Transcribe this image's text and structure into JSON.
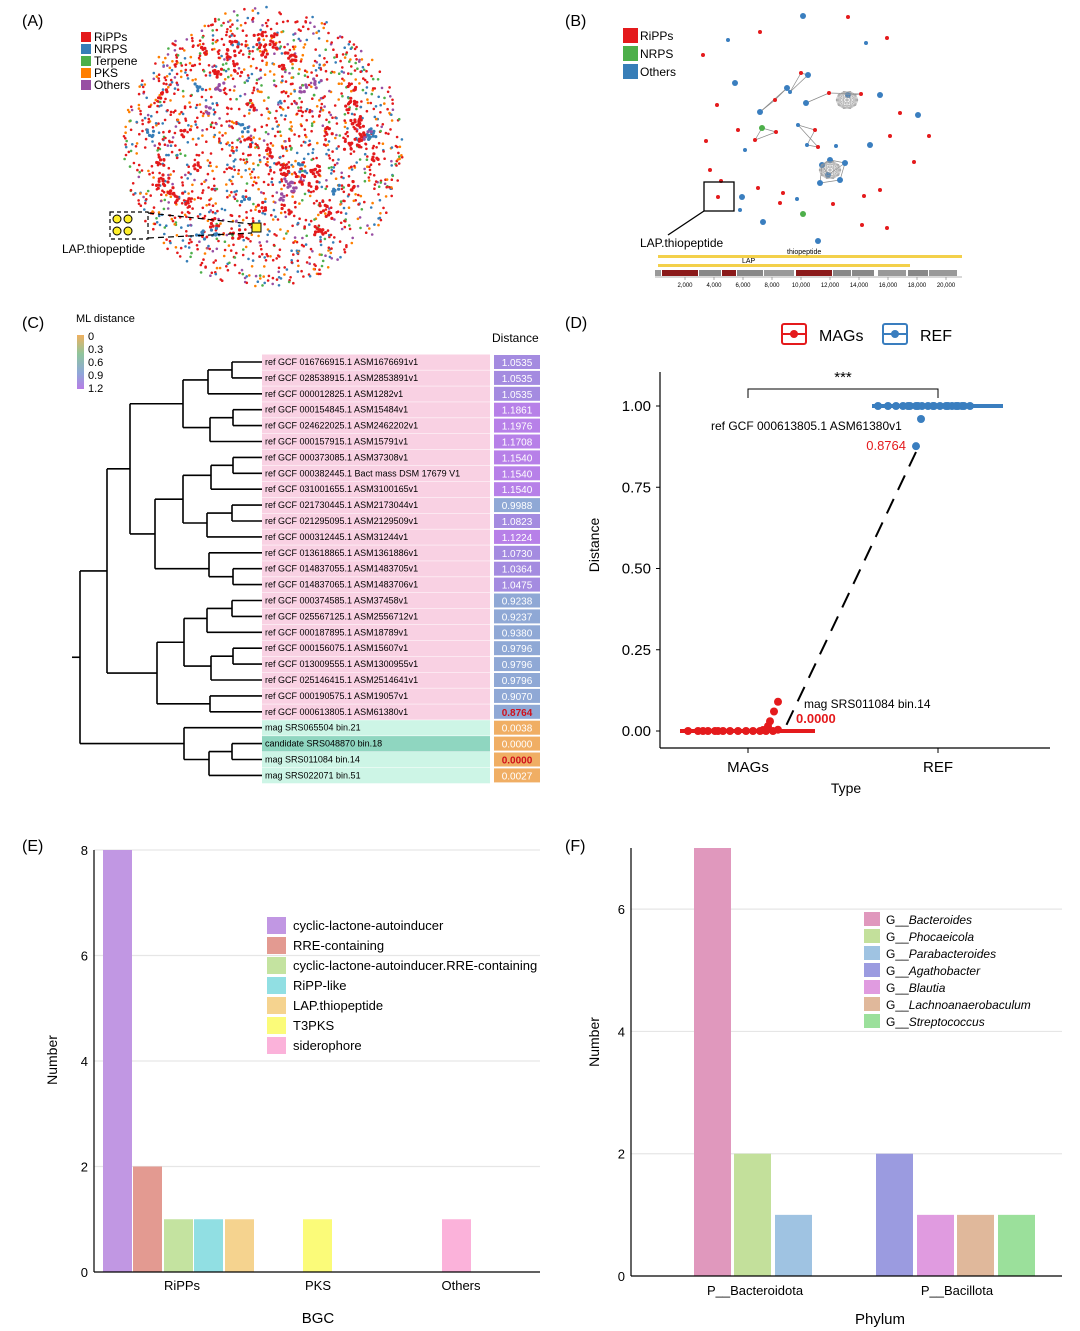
{
  "panel_letters": [
    "(A)",
    "(B)",
    "(C)",
    "(D)",
    "(E)",
    "(F)"
  ],
  "colors": {
    "ripps": "#e41a1c",
    "nrps": "#377eb8",
    "terpene": "#4daf4a",
    "pks": "#ff7f00",
    "others": "#984ea3",
    "mags": "#e41a1c",
    "ref": "#3a7ebf",
    "ref_label_bg": "#f9d1e3",
    "mag_label_bg": "#cdf5e6",
    "candidate_bg": "#8fd6c0"
  },
  "panel_a": {
    "legend": [
      {
        "label": "RiPPs",
        "color": "#e41a1c"
      },
      {
        "label": "NRPS",
        "color": "#377eb8"
      },
      {
        "label": "Terpene",
        "color": "#4daf4a"
      },
      {
        "label": "PKS",
        "color": "#ff7f00"
      },
      {
        "label": "Others",
        "color": "#984ea3"
      }
    ],
    "callout_label": "LAP.thiopeptide",
    "callout_icon": "yellow-node-cluster-icon"
  },
  "panel_b": {
    "legend": [
      {
        "label": "RiPPs",
        "color": "#e41a1c"
      },
      {
        "label": "NRPS",
        "color": "#4daf4a"
      },
      {
        "label": "Others",
        "color": "#377eb8"
      }
    ],
    "callout_label": "LAP.thiopeptide",
    "track_labels": [
      "thiopeptide",
      "LAP"
    ],
    "axis_ticks": [
      "2,000",
      "4,000",
      "6,000",
      "8,000",
      "10,000",
      "12,000",
      "14,000",
      "16,000",
      "18,000",
      "20,000"
    ]
  },
  "chart_data": [
    {
      "type": "table",
      "panel": "C",
      "legend_title": "ML distance",
      "legend_ticks": [
        "0",
        "0.3",
        "0.6",
        "0.9",
        "1.2"
      ],
      "column_header": "Distance",
      "rows": [
        {
          "label": "ref GCF 016766915.1 ASM1676691v1",
          "distance": "1.0535",
          "group": "ref"
        },
        {
          "label": "ref GCF 028538915.1 ASM2853891v1",
          "distance": "1.0535",
          "group": "ref"
        },
        {
          "label": "ref GCF 000012825.1 ASM1282v1",
          "distance": "1.0535",
          "group": "ref"
        },
        {
          "label": "ref GCF 000154845.1 ASM15484v1",
          "distance": "1.1861",
          "group": "ref"
        },
        {
          "label": "ref GCF 024622025.1 ASM2462202v1",
          "distance": "1.1976",
          "group": "ref"
        },
        {
          "label": "ref GCF 000157915.1 ASM15791v1",
          "distance": "1.1708",
          "group": "ref"
        },
        {
          "label": "ref GCF 000373085.1 ASM37308v1",
          "distance": "1.1540",
          "group": "ref"
        },
        {
          "label": "ref GCF 000382445.1 Bact mass DSM 17679 V1",
          "distance": "1.1540",
          "group": "ref"
        },
        {
          "label": "ref GCF 031001655.1 ASM3100165v1",
          "distance": "1.1540",
          "group": "ref"
        },
        {
          "label": "ref GCF 021730445.1 ASM2173044v1",
          "distance": "0.9988",
          "group": "ref"
        },
        {
          "label": "ref GCF 021295095.1 ASM2129509v1",
          "distance": "1.0823",
          "group": "ref"
        },
        {
          "label": "ref GCF 000312445.1 ASM31244v1",
          "distance": "1.1224",
          "group": "ref"
        },
        {
          "label": "ref GCF 013618865.1 ASM1361886v1",
          "distance": "1.0730",
          "group": "ref"
        },
        {
          "label": "ref GCF 014837055.1 ASM1483705v1",
          "distance": "1.0364",
          "group": "ref"
        },
        {
          "label": "ref GCF 014837065.1 ASM1483706v1",
          "distance": "1.0475",
          "group": "ref"
        },
        {
          "label": "ref GCF 000374585.1 ASM37458v1",
          "distance": "0.9238",
          "group": "ref"
        },
        {
          "label": "ref GCF 025567125.1 ASM2556712v1",
          "distance": "0.9237",
          "group": "ref"
        },
        {
          "label": "ref GCF 000187895.1 ASM18789v1",
          "distance": "0.9380",
          "group": "ref"
        },
        {
          "label": "ref GCF 000156075.1 ASM15607v1",
          "distance": "0.9796",
          "group": "ref"
        },
        {
          "label": "ref GCF 013009555.1 ASM1300955v1",
          "distance": "0.9796",
          "group": "ref"
        },
        {
          "label": "ref GCF 025146415.1 ASM2514641v1",
          "distance": "0.9796",
          "group": "ref"
        },
        {
          "label": "ref GCF 000190575.1 ASM19057v1",
          "distance": "0.9070",
          "group": "ref"
        },
        {
          "label": "ref GCF 000613805.1 ASM61380v1",
          "distance": "0.8764",
          "group": "ref",
          "highlight": true
        },
        {
          "label": "mag SRS065504 bin.21",
          "distance": "0.0038",
          "group": "mag"
        },
        {
          "label": "candidate SRS048870 bin.18",
          "distance": "0.0000",
          "group": "candidate"
        },
        {
          "label": "mag SRS011084 bin.14",
          "distance": "0.0000",
          "group": "mag",
          "highlight": true
        },
        {
          "label": "mag SRS022071 bin.51",
          "distance": "0.0027",
          "group": "mag"
        }
      ]
    },
    {
      "type": "scatter",
      "panel": "D",
      "legend": [
        "MAGs",
        "REF"
      ],
      "xlabel": "Type",
      "ylabel": "Distance",
      "categories": [
        "MAGs",
        "REF"
      ],
      "ylim": [
        0,
        1.0
      ],
      "yticks": [
        "0.00",
        "0.25",
        "0.50",
        "0.75",
        "1.00"
      ],
      "significance": "***",
      "series": [
        {
          "name": "MAGs",
          "values": [
            0.0,
            0.0,
            0.0,
            0.0,
            0.0,
            0.0,
            0.0,
            0.0,
            0.0,
            0.0,
            0.0,
            0.0,
            0.0,
            0.0,
            0.004,
            0.003,
            0.015,
            0.03,
            0.06,
            0.09
          ]
        },
        {
          "name": "REF",
          "values": [
            1.0,
            1.0,
            1.0,
            1.0,
            1.0,
            1.0,
            1.0,
            1.0,
            1.0,
            1.0,
            1.0,
            1.0,
            1.0,
            1.0,
            1.0,
            1.0,
            1.0,
            1.0,
            1.0,
            1.0,
            1.0,
            0.96,
            0.8764
          ]
        }
      ],
      "annotations": [
        {
          "text": "ref GCF 000613805.1 ASM61380v1",
          "value": "0.8764"
        },
        {
          "text": "mag SRS011084 bin.14",
          "value": "0.0000"
        }
      ]
    },
    {
      "type": "bar",
      "panel": "E",
      "xlabel": "BGC",
      "ylabel": "Number",
      "ylim": [
        0,
        8
      ],
      "yticks": [
        "0",
        "2",
        "4",
        "6",
        "8"
      ],
      "categories": [
        "RiPPs",
        "PKS",
        "Others"
      ],
      "legend": [
        {
          "label": "cyclic-lactone-autoinducer",
          "color": "#c197e3"
        },
        {
          "label": "RRE-containing",
          "color": "#e39a91"
        },
        {
          "label": "cyclic-lactone-autoinducer.RRE-containing",
          "color": "#c4e3a0"
        },
        {
          "label": "RiPP-like",
          "color": "#91dfe3"
        },
        {
          "label": "LAP.thiopeptide",
          "color": "#f5d38f"
        },
        {
          "label": "T3PKS",
          "color": "#fbfb79"
        },
        {
          "label": "siderophore",
          "color": "#fbb2da"
        }
      ],
      "bars": [
        {
          "category": "RiPPs",
          "series": "cyclic-lactone-autoinducer",
          "value": 8
        },
        {
          "category": "RiPPs",
          "series": "RRE-containing",
          "value": 2
        },
        {
          "category": "RiPPs",
          "series": "cyclic-lactone-autoinducer.RRE-containing",
          "value": 1
        },
        {
          "category": "RiPPs",
          "series": "RiPP-like",
          "value": 1
        },
        {
          "category": "RiPPs",
          "series": "LAP.thiopeptide",
          "value": 1
        },
        {
          "category": "PKS",
          "series": "T3PKS",
          "value": 1
        },
        {
          "category": "Others",
          "series": "siderophore",
          "value": 1
        }
      ]
    },
    {
      "type": "bar",
      "panel": "F",
      "xlabel": "Phylum",
      "ylabel": "Number",
      "ylim": [
        0,
        7
      ],
      "yticks": [
        "0",
        "2",
        "4",
        "6"
      ],
      "categories": [
        "P__Bacteroidota",
        "P__Bacillota"
      ],
      "legend": [
        {
          "prefix": "G__",
          "label": "Bacteroides",
          "color": "#e098bd"
        },
        {
          "prefix": "G__",
          "label": "Phocaeicola",
          "color": "#c3e09b"
        },
        {
          "prefix": "G__",
          "label": "Parabacteroides",
          "color": "#9fc3e2"
        },
        {
          "prefix": "G__",
          "label": "Agathobacter",
          "color": "#9b9be0"
        },
        {
          "prefix": "G__",
          "label": "Blautia",
          "color": "#e09be0"
        },
        {
          "prefix": "G__",
          "label": "Lachnoanaerobaculum",
          "color": "#e0b89b"
        },
        {
          "prefix": "G__",
          "label": "Streptococcus",
          "color": "#9be09b"
        }
      ],
      "bars": [
        {
          "category": "P__Bacteroidota",
          "series": "Bacteroides",
          "value": 7
        },
        {
          "category": "P__Bacteroidota",
          "series": "Phocaeicola",
          "value": 2
        },
        {
          "category": "P__Bacteroidota",
          "series": "Parabacteroides",
          "value": 1
        },
        {
          "category": "P__Bacillota",
          "series": "Agathobacter",
          "value": 2
        },
        {
          "category": "P__Bacillota",
          "series": "Blautia",
          "value": 1
        },
        {
          "category": "P__Bacillota",
          "series": "Lachnoanaerobaculum",
          "value": 1
        },
        {
          "category": "P__Bacillota",
          "series": "Streptococcus",
          "value": 1
        }
      ]
    }
  ]
}
